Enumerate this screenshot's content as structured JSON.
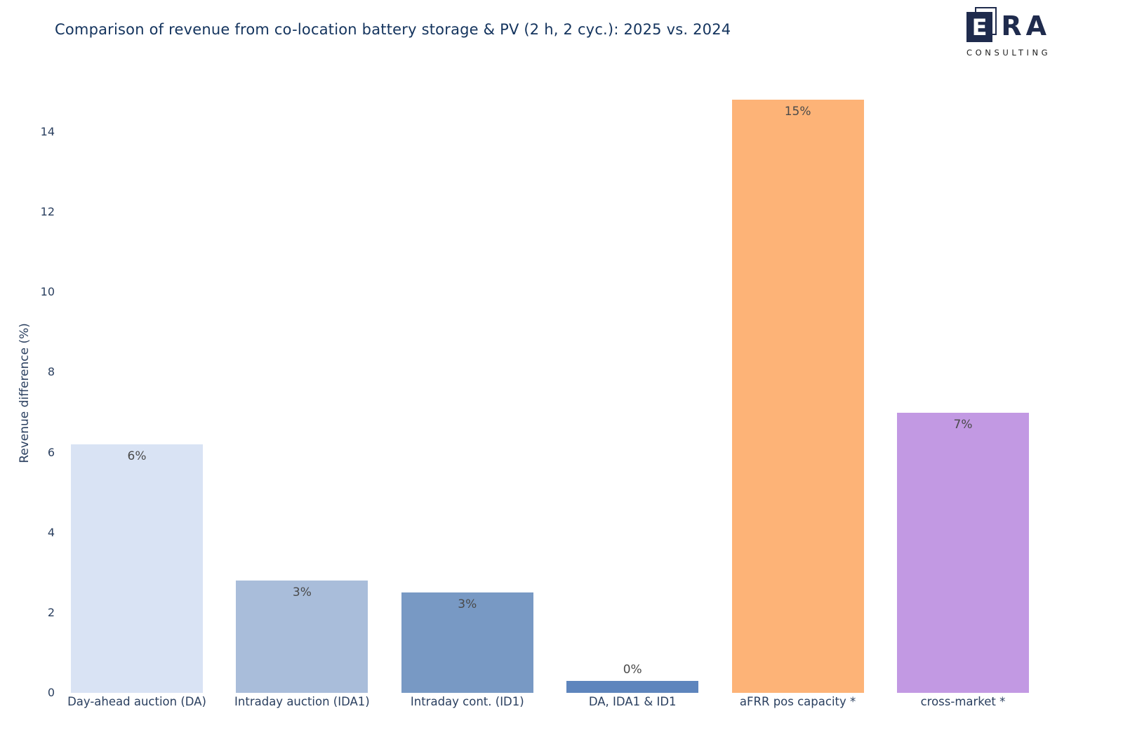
{
  "header": {
    "title": "Comparison of revenue from co-location battery storage & PV (2 h, 2 cyc.): 2025 vs. 2024"
  },
  "logo": {
    "letter_e": "E",
    "letter_r": "R",
    "letter_a": "A",
    "subtitle": "CONSULTING",
    "color": "#1f2b4d"
  },
  "chart_data": {
    "type": "bar",
    "title": "Comparison of revenue from co-location battery storage & PV (2 h, 2 cyc.): 2025 vs. 2024",
    "xlabel": "",
    "ylabel": "Revenue difference (%)",
    "ylim": [
      0,
      15
    ],
    "yticks": [
      0,
      2,
      4,
      6,
      8,
      10,
      12,
      14
    ],
    "grid": false,
    "legend": "none",
    "categories": [
      "Day-ahead auction (DA)",
      "Intraday auction (IDA1)",
      "Intraday cont. (ID1)",
      "DA, IDA1 & ID1",
      "aFRR pos capacity *",
      "cross-market *"
    ],
    "values": [
      6.2,
      2.8,
      2.5,
      0.3,
      14.8,
      7.0
    ],
    "bar_labels": [
      "6%",
      "3%",
      "3%",
      "0%",
      "15%",
      "7%"
    ],
    "bar_colors": [
      "#d9e3f4",
      "#a9bdda",
      "#7899c4",
      "#5e85bd",
      "#fdb377",
      "#c299e3"
    ],
    "value_label_color": "#4a4a4a",
    "axis_text_color": "#2a3f5f",
    "title_color": "#13335d"
  }
}
